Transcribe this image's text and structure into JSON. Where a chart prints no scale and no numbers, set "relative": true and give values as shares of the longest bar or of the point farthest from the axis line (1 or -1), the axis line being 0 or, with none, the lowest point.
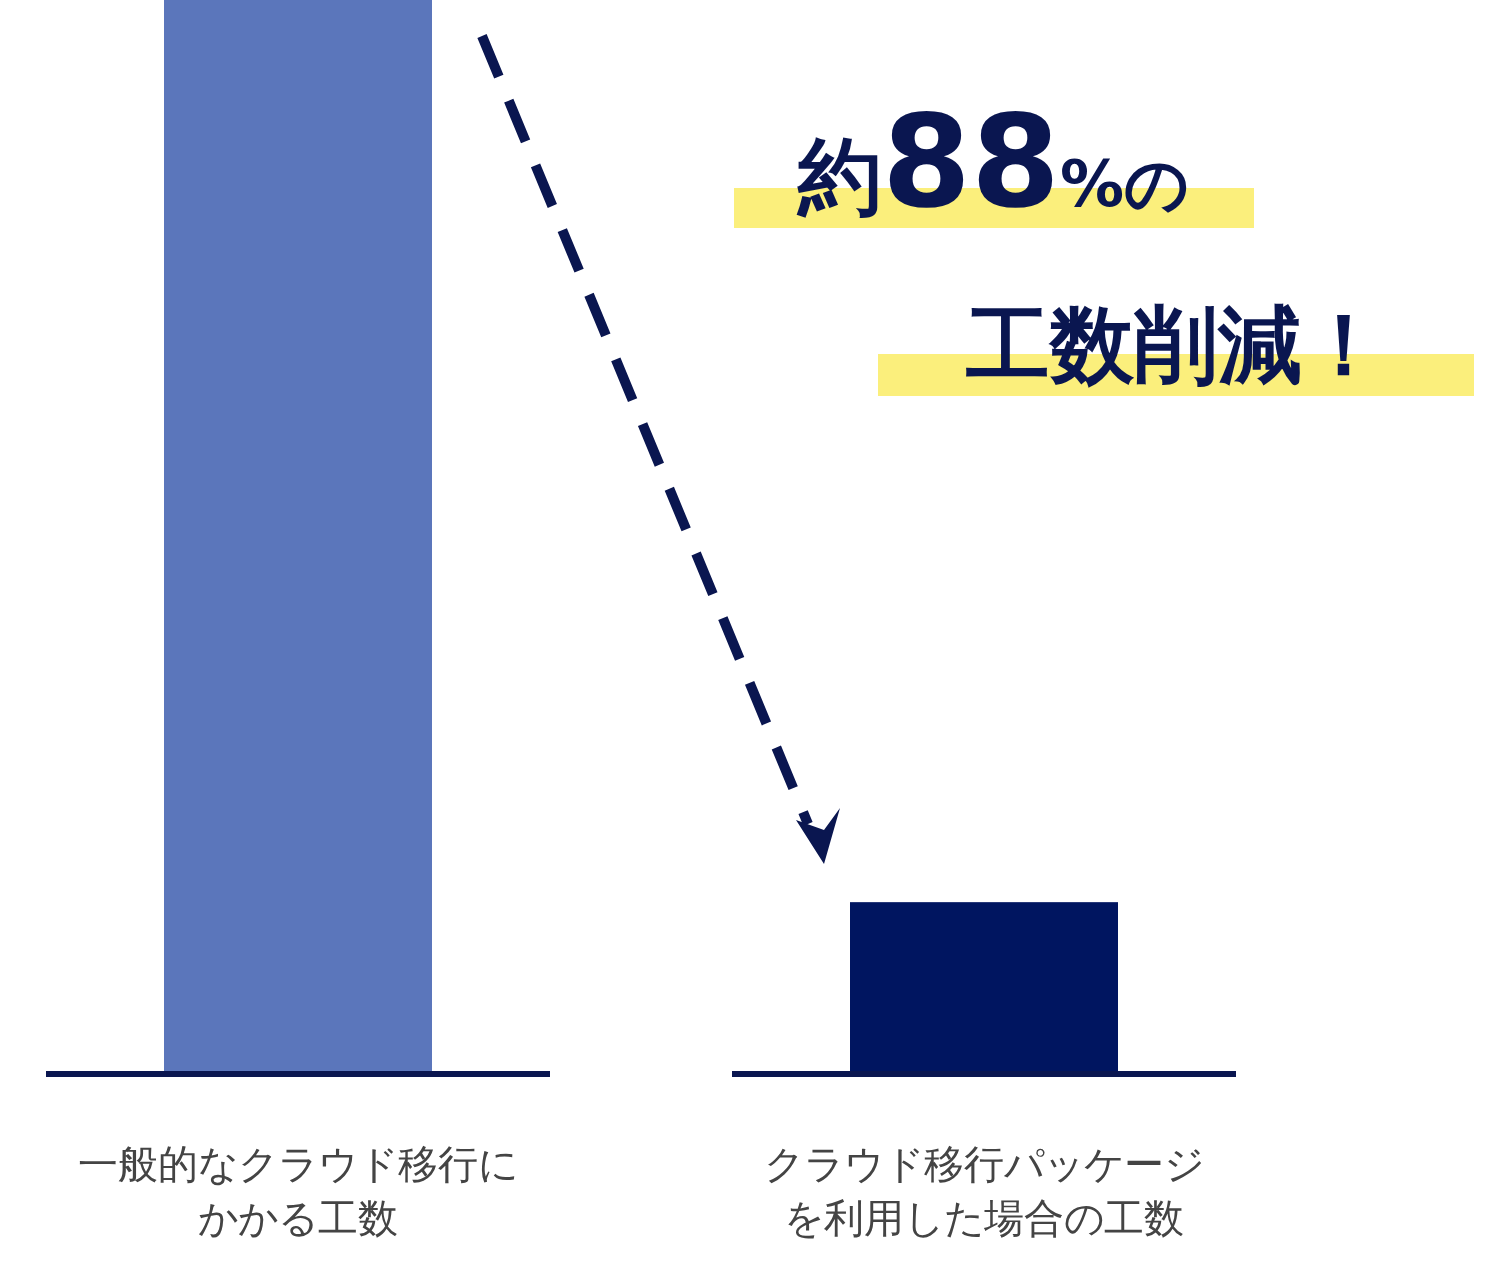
{
  "chart_data": {
    "type": "bar",
    "relative": true,
    "categories": [
      "一般的なクラウド移行にかかる工数",
      "クラウド移行パッケージを利用した場合の工数"
    ],
    "values": [
      1,
      0.16
    ],
    "colors": [
      "#5b76bb",
      "#001560"
    ],
    "annotations": [
      "約88%の",
      "工数削減！"
    ],
    "ref_lines": [
      {
        "axis": "y",
        "value": 0,
        "color": "#0a1650"
      }
    ]
  }
}
